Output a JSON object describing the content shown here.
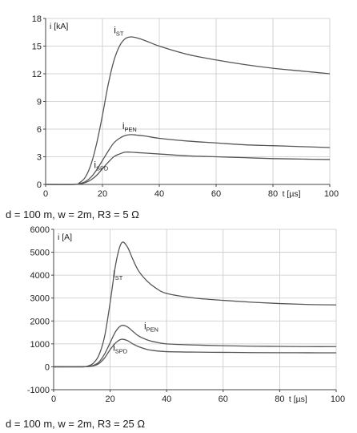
{
  "chart_data": [
    {
      "type": "line",
      "ylabel": "i [kA]",
      "xlabel": "t [µs]",
      "xlim": [
        0,
        100
      ],
      "ylim": [
        0,
        18
      ],
      "xticks": [
        0,
        20,
        40,
        60,
        80,
        100
      ],
      "xtick_labels": [
        "0",
        "20",
        "40",
        "60",
        "80",
        "100"
      ],
      "yticks": [
        0,
        3,
        6,
        9,
        12,
        15,
        18
      ],
      "ytick_labels": [
        "0",
        "3",
        "6",
        "9",
        "12",
        "15",
        "18"
      ],
      "grid": true,
      "caption": "d = 100 m, w = 2m, R3 = 5 Ω",
      "series": [
        {
          "name": "ST",
          "label_main": "i",
          "label_sub": "ST",
          "label_pos": [
            24,
            16.4
          ],
          "x": [
            0,
            10,
            12,
            14,
            16,
            18,
            20,
            22,
            24,
            26,
            28,
            30,
            32,
            35,
            40,
            50,
            60,
            70,
            80,
            90,
            100
          ],
          "y": [
            0,
            0,
            0.2,
            0.8,
            2.2,
            4.5,
            7.5,
            10.8,
            13.4,
            15.0,
            15.8,
            16.0,
            15.9,
            15.6,
            15.0,
            14.1,
            13.5,
            13.0,
            12.6,
            12.3,
            12.0
          ]
        },
        {
          "name": "PEN",
          "label_main": "i",
          "label_sub": "PEN",
          "label_pos": [
            27,
            6.0
          ],
          "x": [
            0,
            10,
            12,
            14,
            16,
            18,
            20,
            22,
            24,
            26,
            28,
            30,
            32,
            35,
            40,
            50,
            60,
            70,
            80,
            90,
            100
          ],
          "y": [
            0,
            0,
            0.1,
            0.3,
            0.8,
            1.6,
            2.6,
            3.6,
            4.5,
            5.0,
            5.3,
            5.4,
            5.35,
            5.25,
            5.0,
            4.7,
            4.5,
            4.3,
            4.2,
            4.1,
            4.0
          ]
        },
        {
          "name": "SPD",
          "label_main": "i",
          "label_sub": "SPD",
          "label_pos": [
            17,
            1.8
          ],
          "x": [
            0,
            10,
            12,
            14,
            16,
            18,
            20,
            22,
            24,
            26,
            28,
            30,
            32,
            35,
            40,
            50,
            60,
            70,
            80,
            90,
            100
          ],
          "y": [
            0,
            0,
            0.05,
            0.2,
            0.5,
            1.0,
            1.7,
            2.4,
            3.0,
            3.3,
            3.5,
            3.5,
            3.45,
            3.4,
            3.3,
            3.1,
            3.0,
            2.9,
            2.8,
            2.75,
            2.7
          ]
        }
      ]
    },
    {
      "type": "line",
      "ylabel": "i [A]",
      "xlabel": "t [µs]",
      "xlim": [
        0,
        100
      ],
      "ylim": [
        -1000,
        6000
      ],
      "xticks": [
        0,
        20,
        40,
        60,
        80,
        100
      ],
      "xtick_labels": [
        "0",
        "20",
        "40",
        "60",
        "80",
        "100"
      ],
      "yticks": [
        -1000,
        0,
        1000,
        2000,
        3000,
        4000,
        5000,
        6000
      ],
      "ytick_labels": [
        "-1000",
        "0",
        "1000",
        "2000",
        "3000",
        "4000",
        "5000",
        "6000"
      ],
      "grid": true,
      "caption": "d = 100 m, w = 2m, R3 = 25 Ω",
      "series": [
        {
          "name": "ST",
          "label_main": "i",
          "label_sub": "ST",
          "label_pos": [
            21,
            3900
          ],
          "x": [
            0,
            10,
            12,
            14,
            16,
            18,
            20,
            22,
            24,
            26,
            28,
            30,
            33,
            36,
            40,
            50,
            60,
            70,
            80,
            90,
            100
          ],
          "y": [
            0,
            0,
            30,
            150,
            500,
            1300,
            2800,
            4500,
            5400,
            5250,
            4700,
            4200,
            3750,
            3450,
            3200,
            3000,
            2900,
            2820,
            2760,
            2720,
            2700
          ]
        },
        {
          "name": "PEN",
          "label_main": "i",
          "label_sub": "PEN",
          "label_pos": [
            32,
            1650
          ],
          "x": [
            0,
            10,
            12,
            14,
            16,
            18,
            20,
            22,
            24,
            26,
            28,
            30,
            33,
            36,
            40,
            50,
            60,
            70,
            80,
            90,
            100
          ],
          "y": [
            0,
            0,
            10,
            60,
            200,
            550,
            1050,
            1550,
            1800,
            1750,
            1550,
            1350,
            1180,
            1080,
            1000,
            950,
            920,
            900,
            890,
            880,
            880
          ]
        },
        {
          "name": "SPD",
          "label_main": "i",
          "label_sub": "SPD",
          "label_pos": [
            21,
            700
          ],
          "x": [
            0,
            10,
            12,
            14,
            16,
            18,
            20,
            22,
            24,
            26,
            28,
            30,
            33,
            36,
            40,
            50,
            60,
            70,
            80,
            90,
            100
          ],
          "y": [
            0,
            0,
            10,
            40,
            140,
            380,
            750,
            1050,
            1200,
            1150,
            1000,
            880,
            760,
            700,
            660,
            640,
            630,
            620,
            615,
            612,
            610
          ]
        }
      ]
    }
  ]
}
